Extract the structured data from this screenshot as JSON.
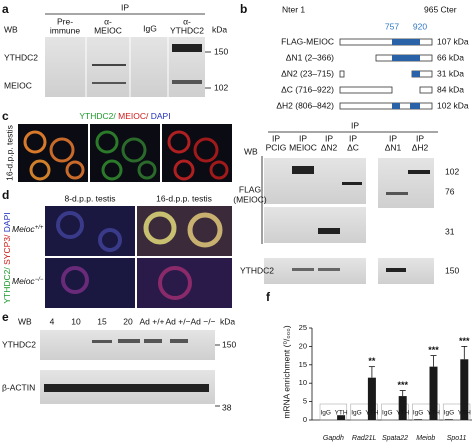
{
  "panel_a": {
    "label": "a",
    "ip": "IP",
    "wb": "WB",
    "columns": [
      [
        "Pre-",
        "immune"
      ],
      [
        "α-",
        "MEIOC"
      ],
      [
        "IgG"
      ],
      [
        "α-",
        "YTHDC2"
      ]
    ],
    "rows": [
      "YTHDC2",
      "MEIOC"
    ],
    "kda": "kDa",
    "markers": [
      150,
      102
    ]
  },
  "panel_b": {
    "label": "b",
    "nter": "Nter 1",
    "cter": "965 Cter",
    "sites": [
      757,
      920
    ],
    "constructs": [
      {
        "name": "FLAG-MEIOC",
        "size": "107 kDa"
      },
      {
        "name": "ΔN1 (2–366)",
        "size": "66 kDa"
      },
      {
        "name": "ΔN2 (23–715)",
        "size": "31 kDa"
      },
      {
        "name": "ΔC (716–922)",
        "size": "84 kDa"
      },
      {
        "name": "ΔH2 (806–842)",
        "size": "102 kDa"
      }
    ]
  },
  "panel_c": {
    "label": "c",
    "stain": [
      "YTHDC2/",
      "MEIOC/",
      "DAPI"
    ],
    "side": "16-d.p.p. testis"
  },
  "panel_d": {
    "label": "d",
    "columns": [
      "8-d.p.p. testis",
      "16-d.p.p. testis"
    ],
    "rows": [
      "Meioc",
      "Meioc"
    ],
    "genotypes": [
      "+/+",
      "−/−"
    ],
    "stain": [
      "YTHDC2/",
      "SYCP3/",
      "DAPI"
    ]
  },
  "panel_e": {
    "label": "e",
    "wb": "WB",
    "lanes": [
      "4",
      "10",
      "15",
      "20",
      "Ad +/+",
      "Ad +/−",
      "Ad −/−"
    ],
    "kda": "kDa",
    "rows": [
      "YTHDC2",
      "β-ACTIN"
    ],
    "markers": [
      150,
      38
    ]
  },
  "panel_ip": {
    "ip": "IP",
    "wb": "WB",
    "columns": [
      [
        "IP",
        "PCIG"
      ],
      [
        "IP",
        "MEIOC"
      ],
      [
        "IP",
        "ΔN2"
      ],
      [
        "IP",
        "ΔC"
      ],
      [
        "IP",
        "ΔN1"
      ],
      [
        "IP",
        "ΔH2"
      ]
    ],
    "flag": [
      "FLAG",
      "(MEIOC)"
    ],
    "ythdc2": "YTHDC2",
    "markers": [
      102,
      76,
      31,
      150
    ]
  },
  "chart_data": {
    "type": "bar",
    "label": "f",
    "ylabel": "mRNA enrichment (⁰/₀₀₀)",
    "categories": [
      "Gapdh",
      "Rad21L",
      "Spata22",
      "Meiob",
      "Spo11"
    ],
    "series": [
      {
        "name": "IgG",
        "color": "#1a1a1a",
        "values": [
          0,
          0,
          0,
          0.2,
          0.2
        ],
        "errors": [
          0,
          0,
          0,
          0,
          0
        ]
      },
      {
        "name": "YTH",
        "color": "#1a1a1a",
        "values": [
          1.3,
          11.5,
          6.5,
          14.5,
          16.5
        ],
        "errors": [
          0,
          3,
          1.5,
          3,
          3.5
        ],
        "significance": [
          null,
          "**",
          "***",
          "***",
          "***"
        ]
      }
    ],
    "ylim": [
      0,
      25
    ],
    "yticks": [
      0,
      5,
      10,
      15,
      20,
      25
    ]
  }
}
